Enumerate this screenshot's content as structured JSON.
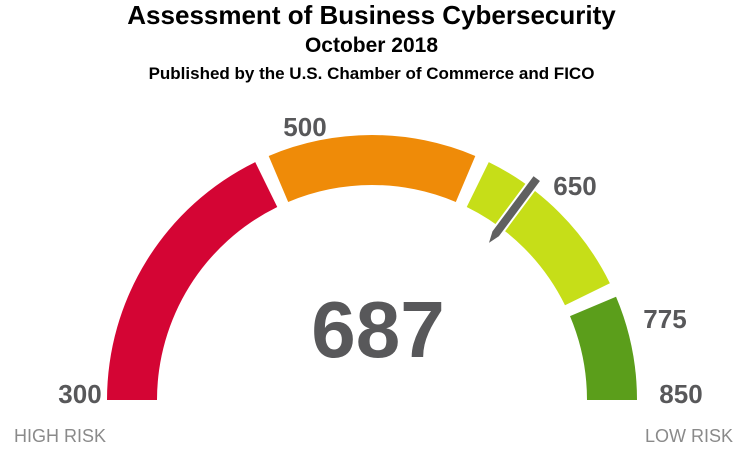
{
  "header": {
    "title": "Assessment of Business Cybersecurity",
    "subtitle": "October 2018",
    "source": "Published by the U.S. Chamber of Commerce and FICO"
  },
  "chart_data": {
    "type": "gauge",
    "min": 300,
    "max": 850,
    "value": 687,
    "value_label": "687",
    "segments": [
      {
        "from": 300,
        "to": 500,
        "color": "#d40534"
      },
      {
        "from": 500,
        "to": 650,
        "color": "#ef8b08"
      },
      {
        "from": 650,
        "to": 775,
        "color": "#c6de18"
      },
      {
        "from": 775,
        "to": 850,
        "color": "#5b9e1b"
      }
    ],
    "tick_labels": [
      "300",
      "500",
      "650",
      "775",
      "850"
    ],
    "end_labels": {
      "left": "HIGH RISK",
      "right": "LOW RISK"
    },
    "needle_color": "#606060",
    "value_color": "#58585a",
    "label_color": "#58585a",
    "end_label_color": "#8a8a8a"
  }
}
